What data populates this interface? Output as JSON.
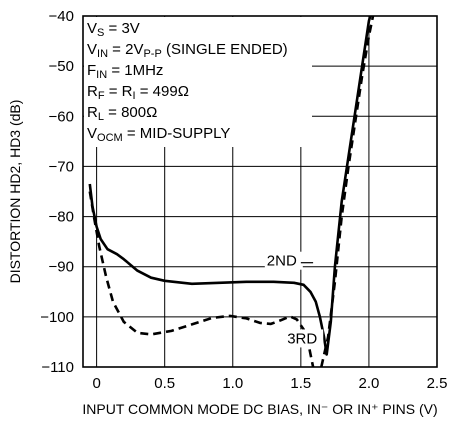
{
  "chart_data": {
    "type": "line",
    "xlabel": "INPUT COMMON MODE DC BIAS, IN⁻ OR IN⁺ PINS (V)",
    "ylabel": "DISTORTION HD2, HD3 (dB)",
    "xlim": [
      -0.1,
      2.5
    ],
    "ylim": [
      -110,
      -40
    ],
    "x_ticks": [
      "0",
      "0.5",
      "1.0",
      "1.5",
      "2.0",
      "2.5"
    ],
    "y_ticks": [
      "−40",
      "−50",
      "−60",
      "−70",
      "−80",
      "−90",
      "−100",
      "−110"
    ],
    "grid": true,
    "conditions": [
      {
        "main": "V",
        "sub": "S",
        "rest": " = 3V"
      },
      {
        "main": "V",
        "sub": "IN",
        "rest": " = 2V",
        "sub2": "P-P",
        "rest2": " (SINGLE ENDED)"
      },
      {
        "main": "F",
        "sub": "IN",
        "rest": " = 1MHz"
      },
      {
        "main": "R",
        "sub": "F",
        "rest": " = R",
        "sub2": "I",
        "rest2": " = 499Ω"
      },
      {
        "main": "R",
        "sub": "L",
        "rest": " = 800Ω"
      },
      {
        "main": "V",
        "sub": "OCM",
        "rest": " = MID-SUPPLY"
      }
    ],
    "series": [
      {
        "name": "2ND",
        "style": "solid",
        "points": [
          [
            -0.05,
            -73.5
          ],
          [
            -0.03,
            -78
          ],
          [
            0.0,
            -82
          ],
          [
            0.03,
            -84.5
          ],
          [
            0.08,
            -86.5
          ],
          [
            0.15,
            -87.5
          ],
          [
            0.2,
            -88.5
          ],
          [
            0.3,
            -90.8
          ],
          [
            0.4,
            -92.2
          ],
          [
            0.5,
            -92.8
          ],
          [
            0.7,
            -93.4
          ],
          [
            0.9,
            -93.2
          ],
          [
            1.1,
            -93
          ],
          [
            1.3,
            -93
          ],
          [
            1.45,
            -93.2
          ],
          [
            1.52,
            -93.6
          ],
          [
            1.57,
            -95
          ],
          [
            1.61,
            -97
          ],
          [
            1.64,
            -100
          ],
          [
            1.67,
            -104
          ],
          [
            1.69,
            -107.5
          ],
          [
            1.72,
            -101
          ],
          [
            1.75,
            -90
          ],
          [
            1.8,
            -77
          ],
          [
            1.85,
            -68
          ],
          [
            1.9,
            -59
          ],
          [
            1.95,
            -50
          ],
          [
            2.0,
            -41
          ],
          [
            2.01,
            -40
          ]
        ]
      },
      {
        "name": "3RD",
        "style": "dashed",
        "points": [
          [
            -0.05,
            -75
          ],
          [
            -0.02,
            -80
          ],
          [
            0.02,
            -86
          ],
          [
            0.07,
            -92
          ],
          [
            0.12,
            -97
          ],
          [
            0.2,
            -101
          ],
          [
            0.3,
            -103.2
          ],
          [
            0.4,
            -103.5
          ],
          [
            0.55,
            -102.8
          ],
          [
            0.7,
            -101.5
          ],
          [
            0.85,
            -100.2
          ],
          [
            0.98,
            -99.8
          ],
          [
            1.1,
            -100.3
          ],
          [
            1.2,
            -101.2
          ],
          [
            1.28,
            -101.4
          ],
          [
            1.35,
            -100.7
          ],
          [
            1.42,
            -99.9
          ],
          [
            1.47,
            -100.5
          ],
          [
            1.52,
            -102.5
          ],
          [
            1.56,
            -106
          ],
          [
            1.59,
            -110
          ]
        ]
      },
      {
        "name": "3RD",
        "style": "dashed",
        "points": [
          [
            1.65,
            -110
          ],
          [
            1.7,
            -104
          ],
          [
            1.75,
            -93
          ],
          [
            1.8,
            -80
          ],
          [
            1.85,
            -70
          ],
          [
            1.9,
            -61
          ],
          [
            1.95,
            -52
          ],
          [
            2.0,
            -44
          ],
          [
            2.03,
            -40
          ]
        ]
      }
    ],
    "series_labels": [
      {
        "text": "2ND",
        "x": 1.25,
        "y": -89.8,
        "leader": [
          [
            1.5,
            -89.2
          ],
          [
            1.59,
            -89.2
          ]
        ]
      },
      {
        "text": "3RD",
        "x": 1.4,
        "y": -105.3
      }
    ]
  }
}
